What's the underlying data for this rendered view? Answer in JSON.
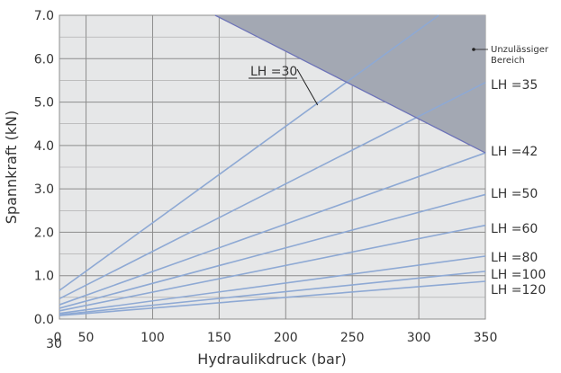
{
  "chart_data": {
    "type": "line",
    "title": "",
    "xlabel": "Hydraulikdruck (bar)",
    "ylabel": "Spannkraft (kN)",
    "xlim": [
      0,
      350
    ],
    "ylim": [
      0,
      7
    ],
    "x_ticks": [
      "0",
      "30",
      "50",
      "100",
      "150",
      "200",
      "250",
      "300",
      "350"
    ],
    "y_ticks": [
      "0.0",
      "1.0",
      "2.0",
      "3.0",
      "4.0",
      "5.0",
      "6.0",
      "7.0"
    ],
    "grid": true,
    "forbidden_zone": {
      "label_line1": "Unzulässiger",
      "label_line2": "Bereich",
      "boundary": [
        [
          147,
          7.0
        ],
        [
          350,
          3.83
        ]
      ]
    },
    "series": [
      {
        "name": "LH =30",
        "values": [
          [
            30,
            0.66
          ],
          [
            315,
            7.0
          ]
        ]
      },
      {
        "name": "LH =35",
        "values": [
          [
            30,
            0.47
          ],
          [
            350,
            5.45
          ]
        ]
      },
      {
        "name": "LH =42",
        "values": [
          [
            30,
            0.33
          ],
          [
            350,
            3.83
          ]
        ]
      },
      {
        "name": "LH =50",
        "values": [
          [
            30,
            0.25
          ],
          [
            350,
            2.87
          ]
        ]
      },
      {
        "name": "LH =60",
        "values": [
          [
            30,
            0.19
          ],
          [
            350,
            2.16
          ]
        ]
      },
      {
        "name": "LH =80",
        "values": [
          [
            30,
            0.13
          ],
          [
            350,
            1.45
          ]
        ]
      },
      {
        "name": "LH =100",
        "values": [
          [
            30,
            0.1
          ],
          [
            350,
            1.1
          ]
        ]
      },
      {
        "name": "LH =120",
        "values": [
          [
            30,
            0.08
          ],
          [
            350,
            0.87
          ]
        ]
      }
    ],
    "callout": {
      "series": "LH =30",
      "x": 224,
      "y": 4.93
    }
  },
  "colors": {
    "plot_bg": "#e6e7e8",
    "grid": "#8c8c8c",
    "series": "#8ea9d4",
    "zone_fill": "#a3a8b3",
    "boundary": "#6d73b8",
    "axis": "#333333"
  }
}
